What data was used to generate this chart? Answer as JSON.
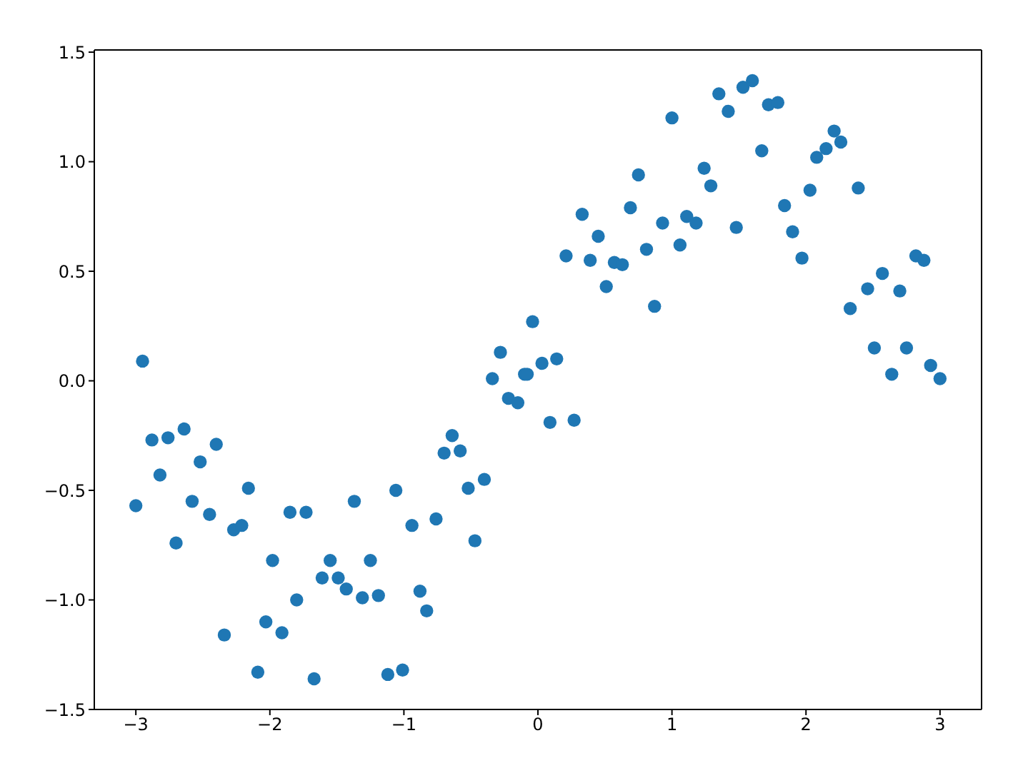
{
  "chart_data": {
    "type": "scatter",
    "marker": "circle",
    "grid": false,
    "legend": false,
    "xlim": [
      -3.31,
      3.31
    ],
    "xticks": [
      {
        "value": -3,
        "label": "−3"
      },
      {
        "value": -2,
        "label": "−2"
      },
      {
        "value": -1,
        "label": "−1"
      },
      0,
      1,
      2,
      3
    ],
    "ylim": [
      -1.5,
      1.51
    ],
    "yticks": [
      {
        "value": -1.5,
        "label": "−1.5"
      },
      {
        "value": -1,
        "label": "−1.0"
      },
      {
        "value": -0.5,
        "label": "−0.5"
      },
      {
        "value": 0,
        "label": "0.0"
      },
      {
        "value": 0.5,
        "label": "0.5"
      },
      {
        "value": 1,
        "label": "1.0"
      },
      {
        "value": 1.5,
        "label": "1.5"
      }
    ],
    "series": [
      {
        "color": "#1f77b4",
        "x": [
          -3.0,
          -2.95,
          -2.88,
          -2.82,
          -2.76,
          -2.7,
          -2.64,
          -2.58,
          -2.52,
          -2.45,
          -2.4,
          -2.34,
          -2.27,
          -2.21,
          -2.16,
          -2.09,
          -2.03,
          -1.98,
          -1.91,
          -1.85,
          -1.8,
          -1.73,
          -1.67,
          -1.61,
          -1.55,
          -1.49,
          -1.43,
          -1.37,
          -1.31,
          -1.25,
          -1.19,
          -1.12,
          -1.06,
          -1.01,
          -0.94,
          -0.88,
          -0.83,
          -0.76,
          -0.7,
          -0.64,
          -0.58,
          -0.52,
          -0.47,
          -0.4,
          -0.34,
          -0.28,
          -0.22,
          -0.15,
          -0.1,
          -0.08,
          -0.04,
          0.03,
          0.09,
          0.14,
          0.21,
          0.27,
          0.33,
          0.39,
          0.45,
          0.51,
          0.57,
          0.63,
          0.69,
          0.75,
          0.81,
          0.87,
          0.93,
          1.0,
          1.06,
          1.11,
          1.18,
          1.24,
          1.29,
          1.35,
          1.42,
          1.48,
          1.53,
          1.6,
          1.67,
          1.72,
          1.79,
          1.84,
          1.9,
          1.97,
          2.03,
          2.08,
          2.15,
          2.21,
          2.26,
          2.33,
          2.39,
          2.46,
          2.51,
          2.57,
          2.64,
          2.7,
          2.75,
          2.82,
          2.88,
          2.93,
          3.0
        ],
        "values": [
          -0.57,
          0.09,
          -0.27,
          -0.43,
          -0.26,
          -0.74,
          -0.22,
          -0.55,
          -0.37,
          -0.61,
          -0.29,
          -1.16,
          -0.68,
          -0.66,
          -0.49,
          -1.33,
          -1.1,
          -0.82,
          -1.15,
          -0.6,
          -1.0,
          -0.6,
          -1.36,
          -0.9,
          -0.82,
          -0.9,
          -0.95,
          -0.55,
          -0.99,
          -0.82,
          -0.98,
          -1.34,
          -0.5,
          -1.32,
          -0.66,
          -0.96,
          -1.05,
          -0.63,
          -0.33,
          -0.25,
          -0.32,
          -0.49,
          -0.73,
          -0.45,
          0.01,
          0.13,
          -0.08,
          -0.1,
          0.03,
          0.03,
          0.27,
          0.08,
          -0.19,
          0.1,
          0.57,
          -0.18,
          0.76,
          0.55,
          0.66,
          0.43,
          0.54,
          0.53,
          0.79,
          0.94,
          0.6,
          0.34,
          0.72,
          1.2,
          0.62,
          0.75,
          0.72,
          0.97,
          0.89,
          1.31,
          1.23,
          0.7,
          1.34,
          1.37,
          1.05,
          1.26,
          1.27,
          0.8,
          0.68,
          0.56,
          0.87,
          1.02,
          1.06,
          1.14,
          1.09,
          0.33,
          0.88,
          0.42,
          0.15,
          0.49,
          0.03,
          0.41,
          0.15,
          0.57,
          0.55,
          0.07,
          0.01
        ]
      }
    ]
  }
}
